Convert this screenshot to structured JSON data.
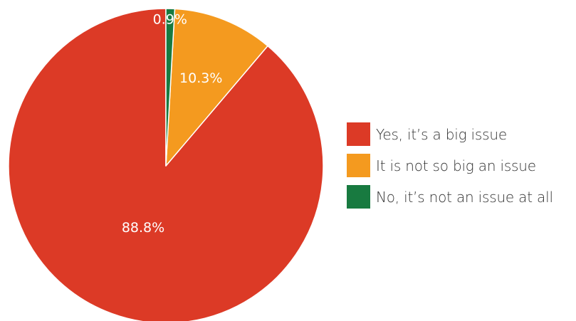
{
  "chart_data": {
    "type": "pie",
    "slices": [
      {
        "label": "Yes, it’s a big issue",
        "value": 88.8,
        "display": "88.8%",
        "color": "#DC3A26"
      },
      {
        "label": "It is not so big an issue",
        "value": 10.3,
        "display": "10.3%",
        "color": "#F49A1F"
      },
      {
        "label": "No, it’s not an issue at all",
        "value": 0.9,
        "display": "0.9%",
        "color": "#187A40"
      }
    ],
    "start_angle_deg": 0,
    "direction": "counterclockwise",
    "legend": "right",
    "label_color": "#ffffff"
  }
}
